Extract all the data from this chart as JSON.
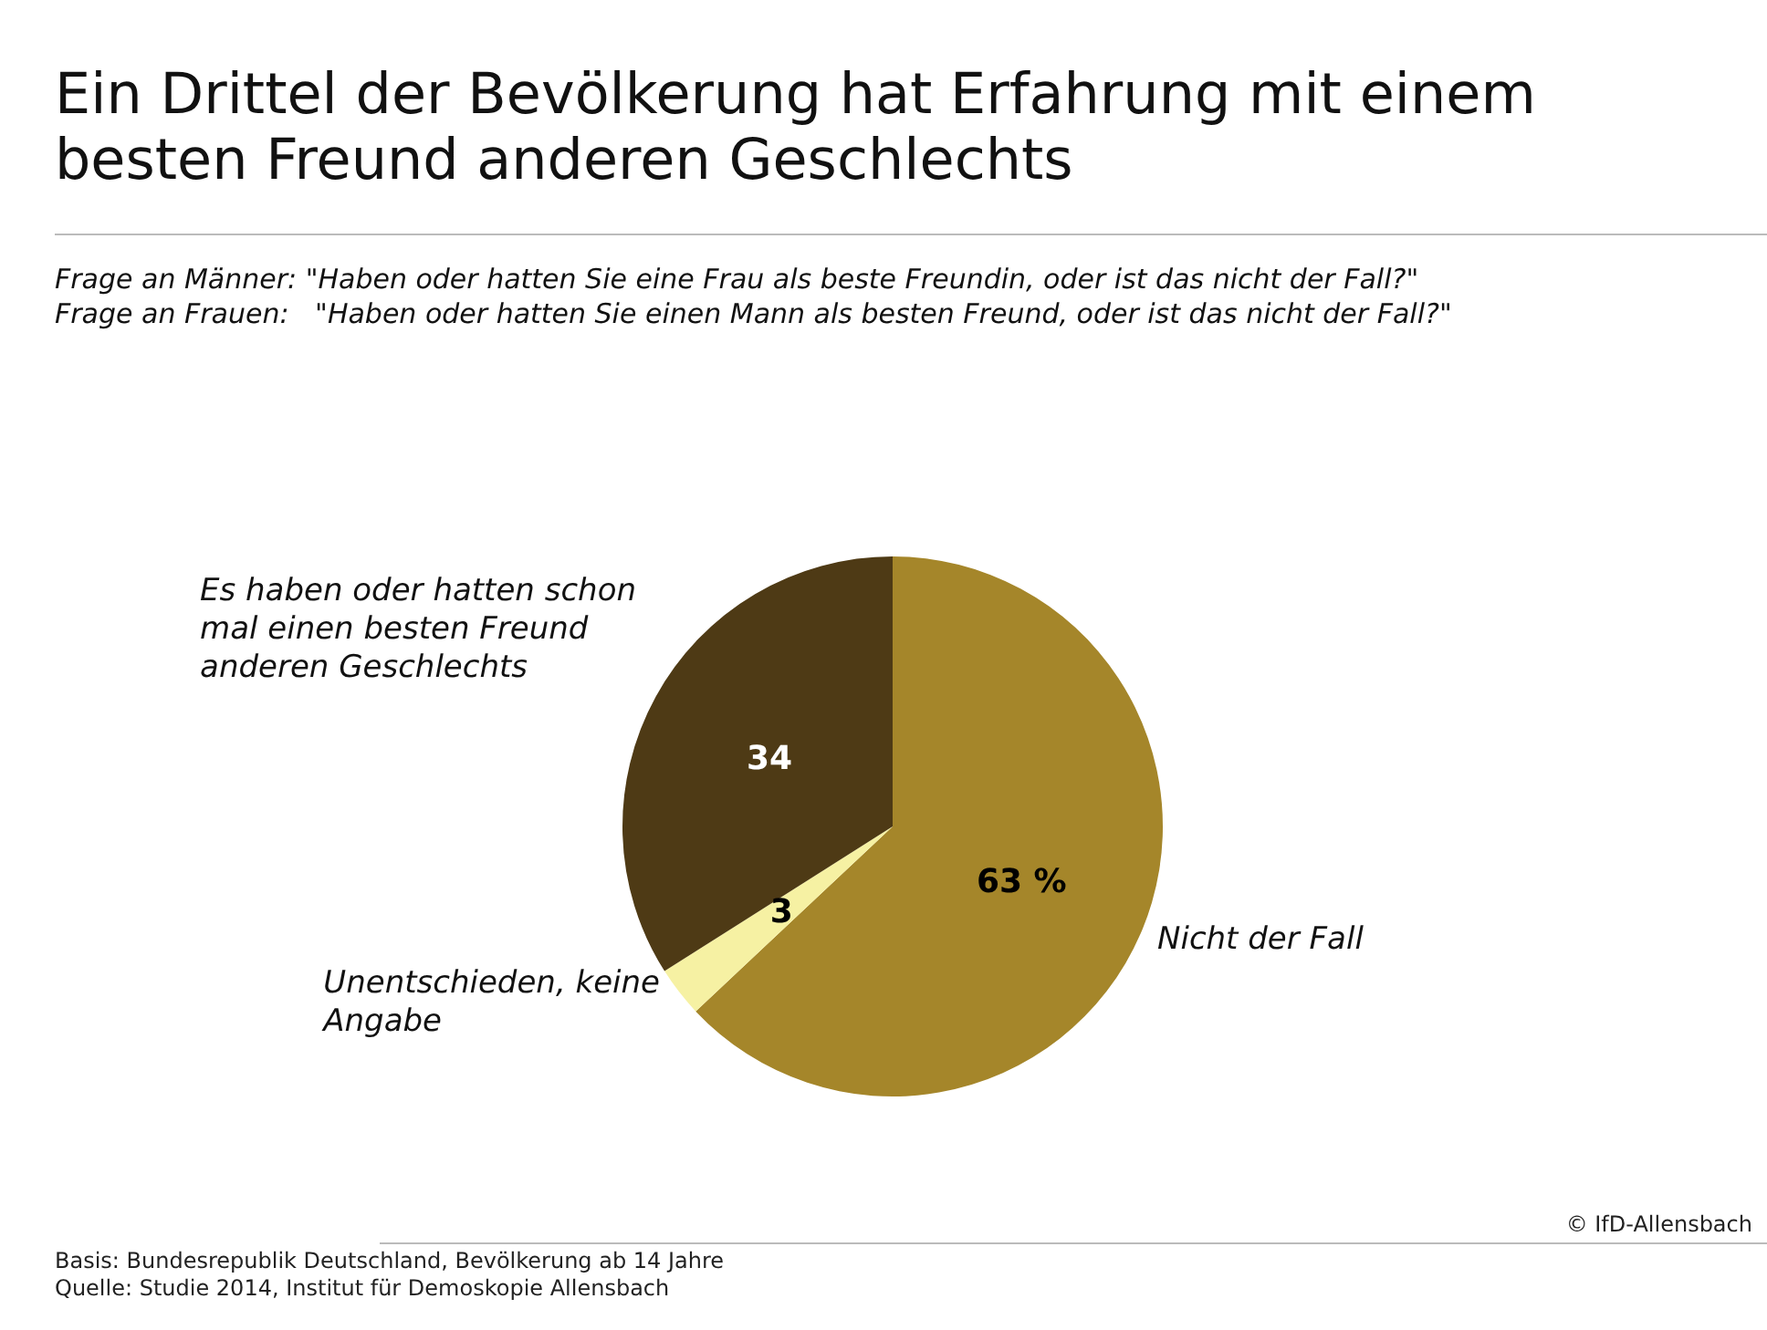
{
  "chart_data": {
    "type": "pie",
    "title": "Ein Drittel der Bevölkerung hat Erfahrung mit einem besten Freund anderen Geschlechts",
    "subtitle": "Frage an Männer: \"Haben oder hatten Sie eine Frau als beste Freundin, oder ist das nicht der Fall?\"\nFrage an Frauen:   \"Haben oder hatten Sie einen Mann als besten Freund, oder ist das nicht der Fall?\"",
    "categories": [
      "Nicht der Fall",
      "Unentschieden, keine Angabe",
      "Es haben oder hatten schon mal einen besten Freund anderen Geschlechts"
    ],
    "values": [
      63,
      3,
      34
    ],
    "colors": [
      "#a5862a",
      "#f6f1a3",
      "#4e3a15"
    ],
    "value_labels": [
      "63 %",
      "3",
      "34"
    ],
    "annotations": [
      "© IfD-Allensbach",
      "Basis: Bundesrepublik Deutschland, Bevölkerung ab 14 Jahre",
      "Quelle: Studie 2014, Institut für Demoskopie Allensbach"
    ]
  }
}
